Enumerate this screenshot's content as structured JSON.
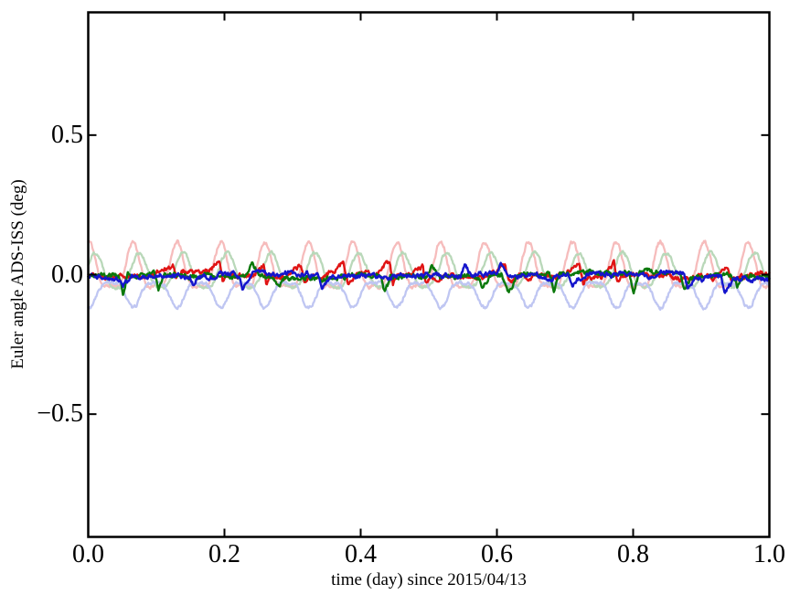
{
  "figure": {
    "background": "#ffffff",
    "frame_color": "#000000",
    "tick_color": "#000000"
  },
  "chart_data": {
    "type": "line",
    "title": "",
    "xlabel": "time (day) since 2015/04/13",
    "ylabel": "Euler angle ADS-ISS (deg)",
    "xlim": [
      0.0,
      1.0
    ],
    "ylim": [
      -0.94,
      0.94
    ],
    "grid": false,
    "legend": null,
    "x_ticks": [
      {
        "value": 0.0,
        "label": "0.0"
      },
      {
        "value": 0.2,
        "label": "0.2"
      },
      {
        "value": 0.4,
        "label": "0.4"
      },
      {
        "value": 0.6,
        "label": "0.6"
      },
      {
        "value": 0.8,
        "label": "0.8"
      },
      {
        "value": 1.0,
        "label": "1.0"
      }
    ],
    "y_ticks": [
      {
        "value": 0.5,
        "label": "0.5"
      },
      {
        "value": 0.0,
        "label": "0.0"
      },
      {
        "value": -0.5,
        "label": "−0.5"
      }
    ],
    "orbits_per_day": 15.5,
    "n_points": 1000,
    "series": [
      {
        "id": "euler-x-raw",
        "color": "#f6bcbc",
        "lw": 2.3,
        "mode": "periodic",
        "seed": 11,
        "offset": 0.012,
        "a1": 0.078,
        "a2": -0.028,
        "phase": 0.23,
        "noise": 0.006,
        "approx_range": [
          -0.04,
          0.125
        ]
      },
      {
        "id": "euler-y-raw",
        "color": "#b9d8b9",
        "lw": 2.3,
        "mode": "periodic",
        "seed": 22,
        "offset": 0.005,
        "a1": 0.062,
        "a2": -0.012,
        "phase": 0.09,
        "noise": 0.005,
        "approx_range": [
          -0.055,
          0.08
        ]
      },
      {
        "id": "euler-z-raw",
        "color": "#bfc6f2",
        "lw": 2.3,
        "mode": "periodic",
        "seed": 33,
        "offset": -0.062,
        "a1": 0.044,
        "a2": 0.013,
        "phase": 0.73,
        "noise": 0.005,
        "approx_range": [
          -0.115,
          -0.01
        ]
      },
      {
        "id": "euler-x-filtered",
        "color": "#e01414",
        "lw": 2.4,
        "mode": "noisy",
        "seed": 44,
        "offset": -0.002,
        "rho_s": 0.975,
        "sig_s": 0.003,
        "rho_f": 0.6,
        "sig_f": 0.0065,
        "event_shape": "rampdrop",
        "event_p": 0.55,
        "event_amp": [
          0.028,
          0.055
        ],
        "event_width": 0.035,
        "flip_p": 0.0,
        "approx_range": [
          -0.05,
          0.07
        ]
      },
      {
        "id": "euler-y-filtered",
        "color": "#0a780a",
        "lw": 2.4,
        "mode": "noisy",
        "seed": 55,
        "offset": -0.002,
        "rho_s": 0.975,
        "sig_s": 0.0028,
        "rho_f": 0.6,
        "sig_f": 0.006,
        "event_shape": "vspike",
        "event_p": 0.5,
        "event_amp": [
          0.035,
          0.075
        ],
        "event_width": 0.018,
        "flip_p": 0.12,
        "approx_range": [
          -0.08,
          0.05
        ]
      },
      {
        "id": "euler-z-filtered",
        "color": "#1515cc",
        "lw": 2.4,
        "mode": "noisy",
        "seed": 66,
        "offset": -0.004,
        "rho_s": 0.975,
        "sig_s": 0.003,
        "rho_f": 0.6,
        "sig_f": 0.006,
        "event_shape": "droprecover",
        "event_p": 0.6,
        "event_amp": [
          0.03,
          0.058
        ],
        "event_width": 0.022,
        "flip_p": 0.22,
        "approx_range": [
          -0.06,
          0.05
        ]
      }
    ]
  }
}
